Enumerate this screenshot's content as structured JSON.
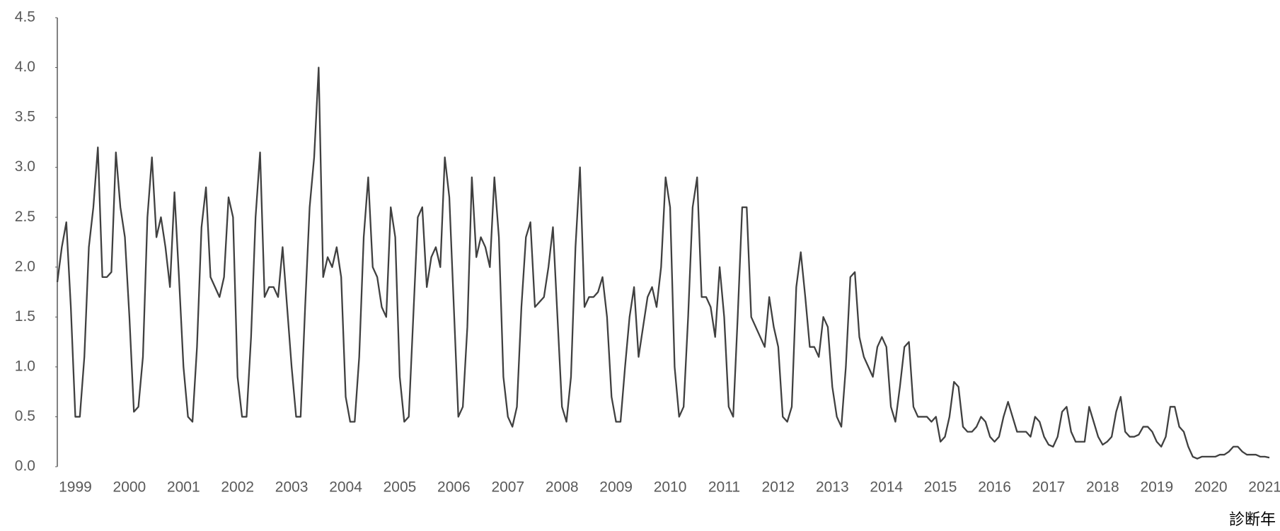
{
  "chart_data": {
    "type": "line",
    "x_label": "診断年",
    "color": "#404040",
    "ylim": [
      0,
      4.5
    ],
    "yticks": [
      {
        "value": 0,
        "label": "0.0"
      },
      0.5,
      {
        "value": 1,
        "label": "1.0"
      },
      1.5,
      {
        "value": 2,
        "label": "2.0"
      },
      2.5,
      {
        "value": 3,
        "label": "3.0"
      },
      3.5,
      {
        "value": 4,
        "label": "4.0"
      },
      4.5
    ],
    "categories": [
      null,
      null,
      null,
      null,
      "1999",
      null,
      null,
      null,
      null,
      null,
      null,
      null,
      null,
      null,
      null,
      null,
      "2000",
      null,
      null,
      null,
      null,
      null,
      null,
      null,
      null,
      null,
      null,
      null,
      "2001",
      null,
      null,
      null,
      null,
      null,
      null,
      null,
      null,
      null,
      null,
      null,
      "2002",
      null,
      null,
      null,
      null,
      null,
      null,
      null,
      null,
      null,
      null,
      null,
      "2003",
      null,
      null,
      null,
      null,
      null,
      null,
      null,
      null,
      null,
      null,
      null,
      "2004",
      null,
      null,
      null,
      null,
      null,
      null,
      null,
      null,
      null,
      null,
      null,
      "2005",
      null,
      null,
      null,
      null,
      null,
      null,
      null,
      null,
      null,
      null,
      null,
      "2006",
      null,
      null,
      null,
      null,
      null,
      null,
      null,
      null,
      null,
      null,
      null,
      "2007",
      null,
      null,
      null,
      null,
      null,
      null,
      null,
      null,
      null,
      null,
      null,
      "2008",
      null,
      null,
      null,
      null,
      null,
      null,
      null,
      null,
      null,
      null,
      null,
      "2009",
      null,
      null,
      null,
      null,
      null,
      null,
      null,
      null,
      null,
      null,
      null,
      "2010",
      null,
      null,
      null,
      null,
      null,
      null,
      null,
      null,
      null,
      null,
      null,
      "2011",
      null,
      null,
      null,
      null,
      null,
      null,
      null,
      null,
      null,
      null,
      null,
      "2012",
      null,
      null,
      null,
      null,
      null,
      null,
      null,
      null,
      null,
      null,
      null,
      "2013",
      null,
      null,
      null,
      null,
      null,
      null,
      null,
      null,
      null,
      null,
      null,
      "2014",
      null,
      null,
      null,
      null,
      null,
      null,
      null,
      null,
      null,
      null,
      null,
      "2015",
      null,
      null,
      null,
      null,
      null,
      null,
      null,
      null,
      null,
      null,
      null,
      "2016",
      null,
      null,
      null,
      null,
      null,
      null,
      null,
      null,
      null,
      null,
      null,
      "2017",
      null,
      null,
      null,
      null,
      null,
      null,
      null,
      null,
      null,
      null,
      null,
      "2018",
      null,
      null,
      null,
      null,
      null,
      null,
      null,
      null,
      null,
      null,
      null,
      "2019",
      null,
      null,
      null,
      null,
      null,
      null,
      null,
      null,
      null,
      null,
      null,
      "2020",
      null,
      null,
      null,
      null,
      null,
      null,
      null,
      null,
      null,
      null,
      null,
      "2021",
      null
    ],
    "values": [
      1.85,
      2.2,
      2.45,
      1.6,
      0.5,
      0.5,
      1.1,
      2.2,
      2.6,
      3.2,
      1.9,
      1.9,
      1.95,
      3.15,
      2.6,
      2.3,
      1.5,
      0.55,
      0.6,
      1.1,
      2.5,
      3.1,
      2.3,
      2.5,
      2.2,
      1.8,
      2.75,
      1.9,
      1.0,
      0.5,
      0.45,
      1.2,
      2.4,
      2.8,
      1.9,
      1.8,
      1.7,
      1.9,
      2.7,
      2.5,
      0.9,
      0.5,
      0.5,
      1.3,
      2.5,
      3.15,
      1.7,
      1.8,
      1.8,
      1.7,
      2.2,
      1.6,
      1.0,
      0.5,
      0.5,
      1.6,
      2.6,
      3.1,
      4.0,
      1.9,
      2.1,
      2.0,
      2.2,
      1.9,
      0.7,
      0.45,
      0.45,
      1.1,
      2.3,
      2.9,
      2.0,
      1.9,
      1.6,
      1.5,
      2.6,
      2.3,
      0.9,
      0.45,
      0.5,
      1.5,
      2.5,
      2.6,
      1.8,
      2.1,
      2.2,
      2.0,
      3.1,
      2.7,
      1.6,
      0.5,
      0.6,
      1.4,
      2.9,
      2.1,
      2.3,
      2.2,
      2.0,
      2.9,
      2.3,
      0.9,
      0.5,
      0.4,
      0.6,
      1.6,
      2.3,
      2.45,
      1.6,
      1.65,
      1.7,
      2.0,
      2.4,
      1.5,
      0.6,
      0.45,
      0.9,
      2.2,
      3.0,
      1.6,
      1.7,
      1.7,
      1.75,
      1.9,
      1.5,
      0.7,
      0.45,
      0.45,
      1.0,
      1.5,
      1.8,
      1.1,
      1.4,
      1.7,
      1.8,
      1.6,
      2.0,
      2.9,
      2.6,
      1.0,
      0.5,
      0.6,
      1.5,
      2.6,
      2.9,
      1.7,
      1.7,
      1.6,
      1.3,
      2.0,
      1.5,
      0.6,
      0.5,
      1.5,
      2.6,
      2.6,
      1.5,
      1.4,
      1.3,
      1.2,
      1.7,
      1.4,
      1.2,
      0.5,
      0.45,
      0.6,
      1.8,
      2.15,
      1.7,
      1.2,
      1.2,
      1.1,
      1.5,
      1.4,
      0.8,
      0.5,
      0.4,
      1.0,
      1.9,
      1.95,
      1.3,
      1.1,
      1.0,
      0.9,
      1.2,
      1.3,
      1.2,
      0.6,
      0.45,
      0.8,
      1.2,
      1.25,
      0.6,
      0.5,
      0.5,
      0.5,
      0.45,
      0.5,
      0.25,
      0.3,
      0.5,
      0.85,
      0.8,
      0.4,
      0.35,
      0.35,
      0.4,
      0.5,
      0.45,
      0.3,
      0.25,
      0.3,
      0.5,
      0.65,
      0.5,
      0.35,
      0.35,
      0.35,
      0.3,
      0.5,
      0.45,
      0.3,
      0.22,
      0.2,
      0.3,
      0.55,
      0.6,
      0.35,
      0.25,
      0.25,
      0.25,
      0.6,
      0.45,
      0.3,
      0.22,
      0.25,
      0.3,
      0.55,
      0.7,
      0.35,
      0.3,
      0.3,
      0.32,
      0.4,
      0.4,
      0.35,
      0.25,
      0.2,
      0.3,
      0.6,
      0.6,
      0.4,
      0.35,
      0.2,
      0.1,
      0.08,
      0.1,
      0.1,
      0.1,
      0.1,
      0.12,
      0.12,
      0.15,
      0.2,
      0.2,
      0.15,
      0.12,
      0.12,
      0.12,
      0.1,
      0.1,
      0.09
    ]
  }
}
